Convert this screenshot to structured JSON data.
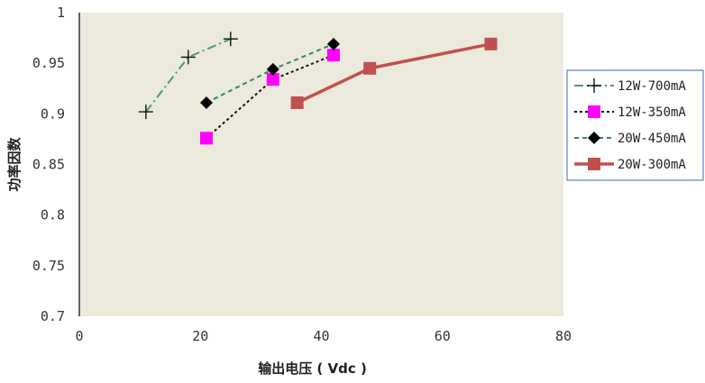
{
  "chart_data": {
    "type": "line",
    "xlabel": "输出电压 ( Vdc )",
    "ylabel": "功率因数",
    "xlim": [
      0,
      80
    ],
    "ylim": [
      0.7,
      1
    ],
    "xticks": [
      "0",
      "20",
      "40",
      "60",
      "80"
    ],
    "yticks": [
      "0.7",
      "0.75",
      "0.8",
      "0.85",
      "0.9",
      "0.95",
      "1"
    ],
    "grid": false,
    "legend_position": "right",
    "plot_background": "#ece9dd",
    "series": [
      {
        "name": "12W-700mA",
        "color": "#4a9a78",
        "dash": "dashdot",
        "marker": "plus",
        "x": [
          11,
          18,
          25
        ],
        "y": [
          0.902,
          0.956,
          0.974
        ]
      },
      {
        "name": "12W-350mA",
        "color": "#111111",
        "dash": "dotted",
        "marker": "square",
        "marker_color": "#ff00ff",
        "x": [
          21,
          32,
          42
        ],
        "y": [
          0.876,
          0.934,
          0.958
        ]
      },
      {
        "name": "20W-450mA",
        "color": "#2e8b57",
        "dash": "dashed",
        "marker": "diamond",
        "x": [
          21,
          32,
          42
        ],
        "y": [
          0.911,
          0.944,
          0.969
        ]
      },
      {
        "name": "20W-300mA",
        "color": "#c0504d",
        "dash": "solid",
        "marker": "square",
        "x": [
          36,
          48,
          68
        ],
        "y": [
          0.911,
          0.945,
          0.969
        ]
      }
    ]
  }
}
